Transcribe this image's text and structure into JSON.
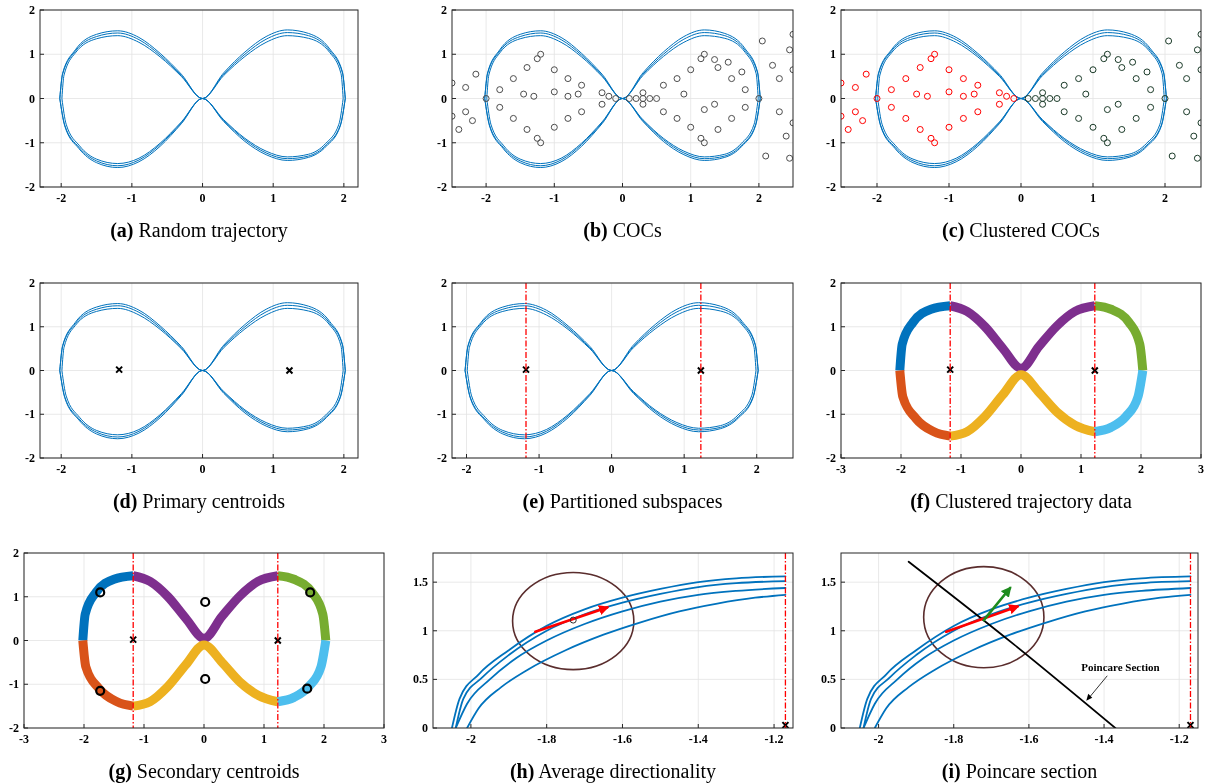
{
  "chart_data": [
    {
      "type": "line",
      "title": "(a) Random trajectory",
      "xlim": [
        -2.3,
        2.2
      ],
      "ylim": [
        -2,
        2
      ],
      "xticks": [
        -2,
        -1,
        0,
        1,
        2
      ],
      "yticks": [
        -2,
        -1,
        0,
        1,
        2
      ],
      "grid": true
    },
    {
      "type": "line",
      "title": "(b) COCs",
      "xlim": [
        -2.5,
        2.5
      ],
      "ylim": [
        -2,
        2
      ],
      "xticks": [
        -2,
        -1,
        0,
        1,
        2
      ],
      "yticks": [
        -2,
        -1,
        0,
        1,
        2
      ],
      "grid": true,
      "series": [
        {
          "type": "scatter",
          "marker": "circle",
          "color": "#4d4d4d",
          "x": [
            -2,
            -1.8,
            -1.6,
            -1.4,
            -1.25,
            -1.2,
            -1.0,
            -0.8,
            -0.6,
            -0.3,
            -1.8,
            -1.6,
            -1.4,
            -1.25,
            -1.2,
            -1.0,
            -0.8,
            -0.6,
            -0.3,
            -2.5,
            -2.3,
            -2.5,
            -2.3,
            -2.15,
            -2.4,
            -1.45,
            -1.3,
            -1.0,
            -0.8,
            -2.2,
            -0.65,
            -0.2,
            -0.1
          ],
          "values": [
            0,
            0.2,
            0.45,
            0.7,
            0.9,
            1.0,
            0.65,
            0.45,
            0.3,
            0.13,
            -0.2,
            -0.45,
            -0.7,
            -0.9,
            -1.0,
            -0.65,
            -0.45,
            -0.3,
            -0.13,
            0.35,
            0.25,
            -0.4,
            -0.3,
            0.55,
            -0.7,
            0.1,
            0.05,
            0.15,
            0.05,
            -0.5,
            0.1,
            0.05,
            0
          ]
        },
        {
          "type": "scatter",
          "marker": "circle",
          "color": "#4d4d4d",
          "x": [
            0.1,
            0.2,
            0.3,
            0.4,
            0.5,
            0.3,
            0.6,
            0.8,
            1.0,
            1.15,
            1.2,
            0.3,
            0.6,
            0.8,
            1.0,
            1.15,
            1.2,
            1.4,
            1.6,
            1.8,
            2.0,
            1.4,
            1.6,
            1.8,
            2.3,
            2.5,
            2.3,
            2.5,
            2.05,
            2.45,
            2.5,
            2.2,
            2.4,
            2.1,
            2.45,
            1.35,
            1.55,
            1.75,
            0.9,
            1.2,
            1.35
          ],
          "values": [
            0,
            0,
            0,
            0,
            0,
            0.13,
            0.3,
            0.45,
            0.65,
            0.9,
            1.0,
            -0.13,
            -0.3,
            -0.45,
            -0.65,
            -0.9,
            -1.0,
            0.7,
            0.45,
            0.2,
            0,
            -0.7,
            -0.45,
            -0.2,
            0.45,
            0.65,
            -0.3,
            -0.55,
            1.3,
            1.1,
            1.45,
            0.75,
            -0.85,
            -1.3,
            -1.35,
            0.88,
            0.82,
            0.6,
            0.1,
            -0.25,
            -0.13
          ]
        }
      ]
    },
    {
      "type": "line",
      "title": "(c) Clustered COCs",
      "xlim": [
        -2.5,
        2.5
      ],
      "ylim": [
        -2,
        2
      ],
      "xticks": [
        -2,
        -1,
        0,
        1,
        2
      ],
      "yticks": [
        -2,
        -1,
        0,
        1,
        2
      ],
      "grid": true,
      "series": [
        {
          "type": "scatter",
          "marker": "circle",
          "color": "#ff0000",
          "x": [
            -2,
            -1.8,
            -1.6,
            -1.4,
            -1.25,
            -1.2,
            -1.0,
            -0.8,
            -0.6,
            -0.3,
            -1.8,
            -1.6,
            -1.4,
            -1.25,
            -1.2,
            -1.0,
            -0.8,
            -0.6,
            -0.3,
            -2.5,
            -2.3,
            -2.5,
            -2.3,
            -2.15,
            -2.4,
            -1.45,
            -1.3,
            -1.0,
            -0.8,
            -2.2,
            -0.65,
            -0.2,
            -0.1
          ],
          "values": [
            0,
            0.2,
            0.45,
            0.7,
            0.9,
            1.0,
            0.65,
            0.45,
            0.3,
            0.13,
            -0.2,
            -0.45,
            -0.7,
            -0.9,
            -1.0,
            -0.65,
            -0.45,
            -0.3,
            -0.13,
            0.35,
            0.25,
            -0.4,
            -0.3,
            0.55,
            -0.7,
            0.1,
            0.05,
            0.15,
            0.05,
            -0.5,
            0.1,
            0.05,
            0
          ]
        },
        {
          "type": "scatter",
          "marker": "circle",
          "color": "#1b3b29",
          "x": [
            0.1,
            0.2,
            0.3,
            0.4,
            0.5,
            0.3,
            0.6,
            0.8,
            1.0,
            1.15,
            1.2,
            0.3,
            0.6,
            0.8,
            1.0,
            1.15,
            1.2,
            1.4,
            1.6,
            1.8,
            2.0,
            1.4,
            1.6,
            1.8,
            2.3,
            2.5,
            2.3,
            2.5,
            2.05,
            2.45,
            2.5,
            2.2,
            2.4,
            2.1,
            2.45,
            1.35,
            1.55,
            1.75,
            0.9,
            1.2,
            1.35
          ],
          "values": [
            0,
            0,
            0,
            0,
            0,
            0.13,
            0.3,
            0.45,
            0.65,
            0.9,
            1.0,
            -0.13,
            -0.3,
            -0.45,
            -0.65,
            -0.9,
            -1.0,
            0.7,
            0.45,
            0.2,
            0,
            -0.7,
            -0.45,
            -0.2,
            0.45,
            0.65,
            -0.3,
            -0.55,
            1.3,
            1.1,
            1.45,
            0.75,
            -0.85,
            -1.3,
            -1.35,
            0.88,
            0.82,
            0.6,
            0.1,
            -0.25,
            -0.13
          ]
        }
      ]
    },
    {
      "type": "line",
      "title": "(d) Primary centroids",
      "xlim": [
        -2.3,
        2.2
      ],
      "ylim": [
        -2,
        2
      ],
      "xticks": [
        -2,
        -1,
        0,
        1,
        2
      ],
      "yticks": [
        -2,
        -1,
        0,
        1,
        2
      ],
      "grid": true,
      "series": [
        {
          "type": "scatter",
          "marker": "cross",
          "color": "#000000",
          "x": [
            -1.18,
            1.23
          ],
          "values": [
            0.02,
            0
          ]
        }
      ]
    },
    {
      "type": "line",
      "title": "(e) Partitioned subspaces",
      "xlim": [
        -2.2,
        2.5
      ],
      "ylim": [
        -2,
        2
      ],
      "xticks": [
        -2,
        -1,
        0,
        1,
        2
      ],
      "yticks": [
        -2,
        -1,
        0,
        1,
        2
      ],
      "grid": true,
      "series": [
        {
          "type": "scatter",
          "marker": "cross",
          "color": "#000000",
          "x": [
            -1.18,
            1.23
          ],
          "values": [
            0.02,
            0
          ]
        }
      ],
      "ref_lines": [
        {
          "axis": "x",
          "value": -1.18,
          "color": "#ff0000",
          "line_style": "dashed"
        },
        {
          "axis": "x",
          "value": 1.23,
          "color": "#ff0000",
          "line_style": "dashed"
        }
      ]
    },
    {
      "type": "line",
      "title": "(f) Clustered trajectory data",
      "xlim": [
        -3,
        3
      ],
      "ylim": [
        -2,
        2
      ],
      "xticks": [
        -3,
        -2,
        -1,
        0,
        1,
        2,
        3
      ],
      "yticks": [
        -2,
        -1,
        0,
        1,
        2
      ],
      "grid": true,
      "series": [
        {
          "type": "line",
          "color": "#0072bd",
          "x": [
            -2.02,
            -1.98,
            -1.8,
            -1.5,
            -1.18
          ],
          "values": [
            0,
            0.6,
            1.1,
            1.4,
            1.48
          ]
        },
        {
          "type": "line",
          "color": "#d95319",
          "x": [
            -2.02,
            -1.97,
            -1.75,
            -1.45,
            -1.18
          ],
          "values": [
            0,
            -0.6,
            -1.1,
            -1.4,
            -1.5
          ]
        },
        {
          "type": "line",
          "color": "#7e2f8e",
          "x": [
            -1.18,
            -0.9,
            -0.6,
            -0.3,
            0,
            0.3,
            0.6,
            0.9,
            1.23
          ],
          "values": [
            1.48,
            1.35,
            1.0,
            0.5,
            0.05,
            0.55,
            1.02,
            1.35,
            1.48
          ]
        },
        {
          "type": "line",
          "color": "#edb120",
          "x": [
            -1.18,
            -0.9,
            -0.6,
            -0.3,
            0,
            0.3,
            0.6,
            0.9,
            1.23
          ],
          "values": [
            -1.5,
            -1.4,
            -1.05,
            -0.55,
            -0.1,
            -0.5,
            -0.95,
            -1.25,
            -1.4
          ]
        },
        {
          "type": "line",
          "color": "#77ac30",
          "x": [
            1.23,
            1.5,
            1.8,
            1.98,
            2.03
          ],
          "values": [
            1.48,
            1.4,
            1.1,
            0.6,
            0
          ]
        },
        {
          "type": "line",
          "color": "#4dbeee",
          "x": [
            1.23,
            1.5,
            1.75,
            1.95,
            2.03
          ],
          "values": [
            -1.4,
            -1.3,
            -1.05,
            -0.6,
            0
          ]
        },
        {
          "type": "scatter",
          "marker": "cross",
          "color": "#000000",
          "x": [
            -1.18,
            1.23
          ],
          "values": [
            0.02,
            0
          ]
        }
      ],
      "ref_lines": [
        {
          "axis": "x",
          "value": -1.18,
          "color": "#ff0000",
          "line_style": "dashed"
        },
        {
          "axis": "x",
          "value": 1.23,
          "color": "#ff0000",
          "line_style": "dashed"
        }
      ]
    },
    {
      "type": "line",
      "title": "(g) Secondary centroids",
      "xlim": [
        -3,
        3
      ],
      "ylim": [
        -2,
        2
      ],
      "xticks": [
        -3,
        -2,
        -1,
        0,
        1,
        2,
        3
      ],
      "yticks": [
        -2,
        -1,
        0,
        1,
        2
      ],
      "grid": true,
      "series": [
        {
          "type": "line",
          "color": "#0072bd",
          "x": [
            -2.02,
            -1.98,
            -1.8,
            -1.5,
            -1.18
          ],
          "values": [
            0,
            0.6,
            1.1,
            1.4,
            1.48
          ]
        },
        {
          "type": "line",
          "color": "#d95319",
          "x": [
            -2.02,
            -1.97,
            -1.75,
            -1.45,
            -1.18
          ],
          "values": [
            0,
            -0.6,
            -1.1,
            -1.4,
            -1.5
          ]
        },
        {
          "type": "line",
          "color": "#7e2f8e",
          "x": [
            -1.18,
            -0.9,
            -0.6,
            -0.3,
            0,
            0.3,
            0.6,
            0.9,
            1.23
          ],
          "values": [
            1.48,
            1.35,
            1.0,
            0.5,
            0.05,
            0.55,
            1.02,
            1.35,
            1.48
          ]
        },
        {
          "type": "line",
          "color": "#edb120",
          "x": [
            -1.18,
            -0.9,
            -0.6,
            -0.3,
            0,
            0.3,
            0.6,
            0.9,
            1.23
          ],
          "values": [
            -1.5,
            -1.4,
            -1.05,
            -0.55,
            -0.1,
            -0.5,
            -0.95,
            -1.25,
            -1.4
          ]
        },
        {
          "type": "line",
          "color": "#77ac30",
          "x": [
            1.23,
            1.5,
            1.8,
            1.98,
            2.03
          ],
          "values": [
            1.48,
            1.4,
            1.1,
            0.6,
            0
          ]
        },
        {
          "type": "line",
          "color": "#4dbeee",
          "x": [
            1.23,
            1.5,
            1.75,
            1.95,
            2.03
          ],
          "values": [
            -1.4,
            -1.3,
            -1.05,
            -0.6,
            0
          ]
        },
        {
          "type": "scatter",
          "marker": "cross",
          "color": "#000000",
          "x": [
            -1.18,
            1.23
          ],
          "values": [
            0.02,
            0
          ]
        },
        {
          "type": "scatter",
          "marker": "circle",
          "color": "#000000",
          "x": [
            -1.73,
            -1.73,
            0.02,
            0.02,
            1.77,
            1.72
          ],
          "values": [
            1.1,
            -1.15,
            0.88,
            -0.88,
            1.1,
            -1.1
          ]
        }
      ],
      "ref_lines": [
        {
          "axis": "x",
          "value": -1.18,
          "color": "#ff0000",
          "line_style": "dashed"
        },
        {
          "axis": "x",
          "value": 1.23,
          "color": "#ff0000",
          "line_style": "dashed"
        }
      ]
    },
    {
      "type": "line",
      "title": "(h) Average directionality",
      "xlim": [
        -2.1,
        -1.15
      ],
      "ylim": [
        0,
        1.8
      ],
      "xticks": [
        -2,
        -1.8,
        -1.6,
        -1.4,
        -1.2
      ],
      "yticks": [
        0,
        0.5,
        1,
        1.5
      ],
      "grid": true,
      "series": [
        {
          "type": "line",
          "color": "#0072bd",
          "x": [
            -2.05,
            -2.03,
            -1.98,
            -1.9,
            -1.8,
            -1.7,
            -1.6,
            -1.5,
            -1.4,
            -1.3,
            -1.17
          ],
          "values": [
            0,
            0.3,
            0.55,
            0.8,
            1.05,
            1.22,
            1.34,
            1.43,
            1.5,
            1.54,
            1.56
          ]
        },
        {
          "type": "line",
          "color": "#0072bd",
          "x": [
            -2.04,
            -2.02,
            -1.97,
            -1.9,
            -1.8,
            -1.7,
            -1.6,
            -1.5,
            -1.4,
            -1.3,
            -1.17
          ],
          "values": [
            0,
            0.3,
            0.52,
            0.75,
            1.0,
            1.17,
            1.29,
            1.38,
            1.45,
            1.49,
            1.51
          ]
        },
        {
          "type": "line",
          "color": "#0072bd",
          "x": [
            -2.04,
            -2.01,
            -1.95,
            -1.88,
            -1.8,
            -1.7,
            -1.6,
            -1.5,
            -1.4,
            -1.3,
            -1.17
          ],
          "values": [
            0,
            0.25,
            0.5,
            0.72,
            0.9,
            1.07,
            1.2,
            1.3,
            1.37,
            1.41,
            1.44
          ]
        },
        {
          "type": "line",
          "color": "#0072bd",
          "x": [
            -2.01,
            -1.98,
            -1.92,
            -1.85,
            -1.75,
            -1.65,
            -1.55,
            -1.45,
            -1.35,
            -1.25,
            -1.17
          ],
          "values": [
            0,
            0.2,
            0.42,
            0.6,
            0.8,
            0.96,
            1.09,
            1.2,
            1.28,
            1.34,
            1.37
          ]
        },
        {
          "type": "line",
          "color": "#ff0000",
          "x": [
            -1.83,
            -1.64
          ],
          "values": [
            0.99,
            1.24
          ]
        },
        {
          "type": "scatter",
          "marker": "circle",
          "color": "#333333",
          "x": [
            -1.73
          ],
          "values": [
            1.11
          ]
        },
        {
          "type": "scatter",
          "marker": "cross",
          "color": "#000000",
          "x": [
            -1.17
          ],
          "values": [
            0.03
          ]
        }
      ],
      "ref_lines": [
        {
          "axis": "x",
          "value": -1.17,
          "color": "#ff0000",
          "line_style": "dashed"
        }
      ]
    },
    {
      "type": "line",
      "title": "(i)  Poincare section",
      "xlim": [
        -2.1,
        -1.15
      ],
      "ylim": [
        0,
        1.8
      ],
      "xticks": [
        -2,
        -1.8,
        -1.6,
        -1.4,
        -1.2
      ],
      "yticks": [
        0,
        0.5,
        1,
        1.5
      ],
      "grid": true,
      "series": [
        {
          "type": "line",
          "color": "#0072bd",
          "x": [
            -2.05,
            -2.03,
            -1.98,
            -1.9,
            -1.8,
            -1.7,
            -1.6,
            -1.5,
            -1.4,
            -1.3,
            -1.17
          ],
          "values": [
            0,
            0.3,
            0.55,
            0.8,
            1.05,
            1.22,
            1.34,
            1.43,
            1.5,
            1.54,
            1.56
          ]
        },
        {
          "type": "line",
          "color": "#0072bd",
          "x": [
            -2.04,
            -2.02,
            -1.97,
            -1.9,
            -1.8,
            -1.7,
            -1.6,
            -1.5,
            -1.4,
            -1.3,
            -1.17
          ],
          "values": [
            0,
            0.3,
            0.52,
            0.75,
            1.0,
            1.17,
            1.29,
            1.38,
            1.45,
            1.49,
            1.51
          ]
        },
        {
          "type": "line",
          "color": "#0072bd",
          "x": [
            -2.04,
            -2.01,
            -1.95,
            -1.88,
            -1.8,
            -1.7,
            -1.6,
            -1.5,
            -1.4,
            -1.3,
            -1.17
          ],
          "values": [
            0,
            0.25,
            0.5,
            0.72,
            0.9,
            1.07,
            1.2,
            1.3,
            1.37,
            1.41,
            1.44
          ]
        },
        {
          "type": "line",
          "color": "#0072bd",
          "x": [
            -2.01,
            -1.98,
            -1.92,
            -1.85,
            -1.75,
            -1.65,
            -1.55,
            -1.45,
            -1.35,
            -1.25,
            -1.17
          ],
          "values": [
            0,
            0.2,
            0.42,
            0.6,
            0.8,
            0.96,
            1.09,
            1.2,
            1.28,
            1.34,
            1.37
          ]
        },
        {
          "type": "line",
          "color": "#000000",
          "x": [
            -1.92,
            -1.64,
            -1.37
          ],
          "values": [
            1.71,
            0.86,
            0
          ]
        },
        {
          "type": "line",
          "color": "#ff0000",
          "x": [
            -1.82,
            -1.63
          ],
          "values": [
            0.99,
            1.25
          ]
        },
        {
          "type": "line",
          "color": "#1e8c1e",
          "x": [
            -1.72,
            -1.65
          ],
          "values": [
            1.11,
            1.44
          ]
        },
        {
          "type": "scatter",
          "marker": "cross",
          "color": "#000000",
          "x": [
            -1.17
          ],
          "values": [
            0.03
          ]
        }
      ],
      "ref_lines": [
        {
          "axis": "x",
          "value": -1.17,
          "color": "#ff0000",
          "line_style": "dashed"
        }
      ],
      "annotations": [
        {
          "text": "Poincare Section",
          "x": -1.45,
          "y": 0.28
        }
      ]
    }
  ]
}
